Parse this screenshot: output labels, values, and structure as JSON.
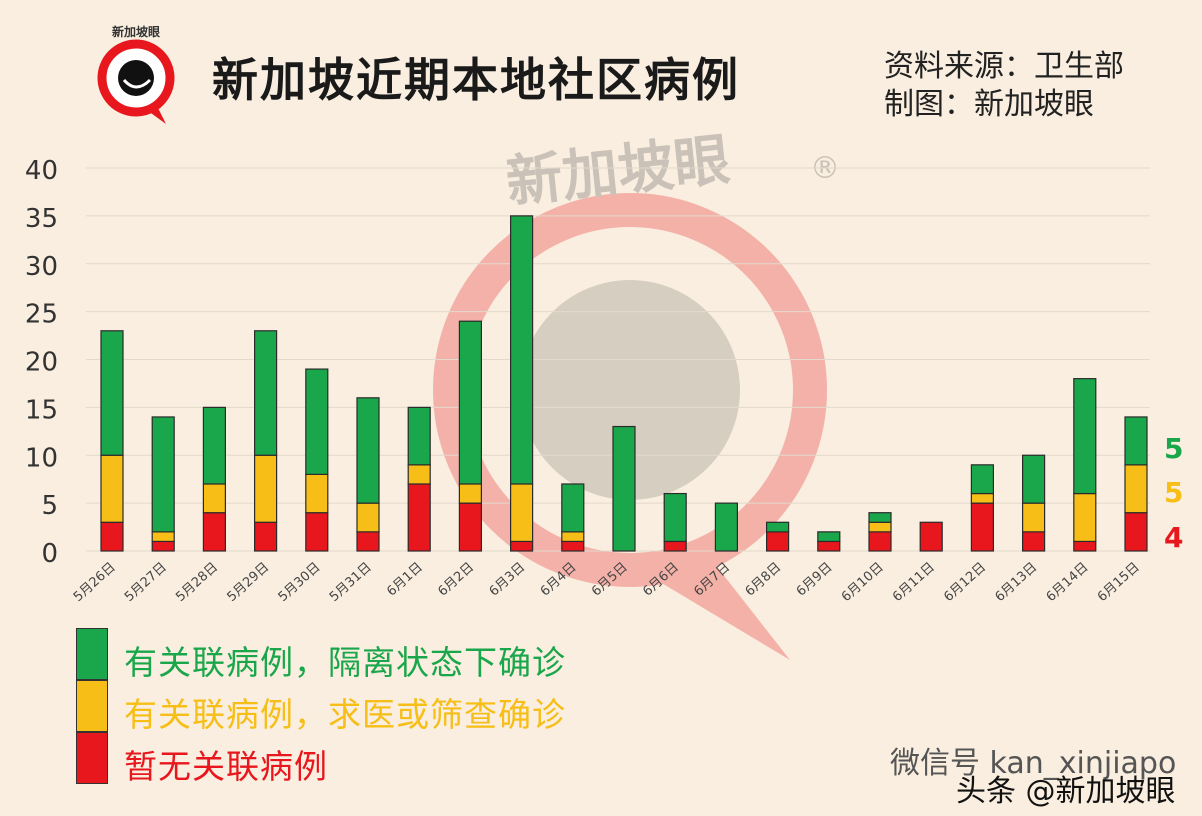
{
  "header": {
    "title": "新加坡近期本地社区病例",
    "source_line": "资料来源：卫生部",
    "credit_line": "制图：新加坡眼",
    "logo_text": "新加坡眼"
  },
  "watermark": {
    "text": "新加坡眼",
    "mark": "®"
  },
  "colors": {
    "green": "#1aa64a",
    "yellow": "#f6be16",
    "red": "#e8171e",
    "background": "#f9eedf"
  },
  "legend": [
    {
      "key": "green",
      "label": "有关联病例，隔离状态下确诊"
    },
    {
      "key": "yellow",
      "label": "有关联病例，求医或筛查确诊"
    },
    {
      "key": "red",
      "label": "暂无关联病例"
    }
  ],
  "footer": {
    "wechat": "微信号 kan_xinjiapo",
    "toutiao": "头条 @新加坡眼"
  },
  "chart_data": {
    "type": "bar",
    "stacked": true,
    "title": "新加坡近期本地社区病例",
    "xlabel": "",
    "ylabel": "",
    "ylim": [
      0,
      40
    ],
    "yticks": [
      0,
      5,
      10,
      15,
      20,
      25,
      30,
      35,
      40
    ],
    "grid": true,
    "legend_position": "bottom-left",
    "categories": [
      "5月26日",
      "5月27日",
      "5月28日",
      "5月29日",
      "5月30日",
      "5月31日",
      "6月1日",
      "6月2日",
      "6月3日",
      "6月4日",
      "6月5日",
      "6月6日",
      "6月7日",
      "6月8日",
      "6月9日",
      "6月10日",
      "6月11日",
      "6月12日",
      "6月13日",
      "6月14日",
      "6月15日"
    ],
    "series": [
      {
        "name": "暂无关联病例",
        "color": "red",
        "values": [
          3,
          1,
          4,
          3,
          4,
          2,
          7,
          5,
          1,
          1,
          0,
          1,
          0,
          2,
          1,
          2,
          3,
          5,
          2,
          1,
          4
        ]
      },
      {
        "name": "有关联病例，求医或筛查确诊",
        "color": "yellow",
        "values": [
          7,
          1,
          3,
          7,
          4,
          3,
          2,
          2,
          6,
          1,
          0,
          0,
          0,
          0,
          0,
          1,
          0,
          1,
          3,
          5,
          5
        ]
      },
      {
        "name": "有关联病例，隔离状态下确诊",
        "color": "green",
        "values": [
          13,
          12,
          8,
          13,
          11,
          11,
          6,
          17,
          28,
          5,
          13,
          5,
          5,
          1,
          1,
          1,
          0,
          3,
          5,
          12,
          5
        ]
      }
    ],
    "annotations": [
      {
        "series": "有关联病例，隔离状态下确诊",
        "text": "5"
      },
      {
        "series": "有关联病例，求医或筛查确诊",
        "text": "5"
      },
      {
        "series": "暂无关联病例",
        "text": "4"
      }
    ]
  }
}
